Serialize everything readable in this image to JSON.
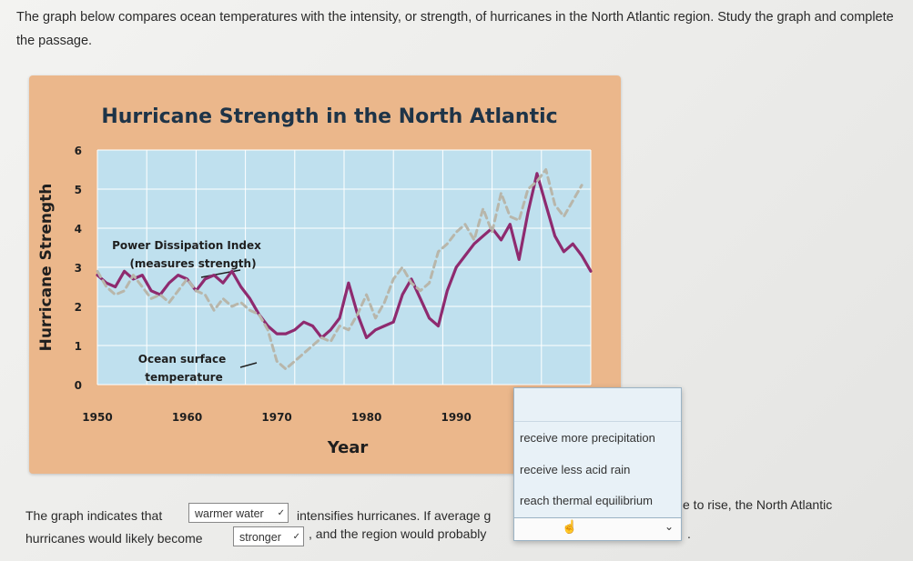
{
  "question": {
    "intro": "The graph below compares ocean temperatures with the intensity, or strength, of hurricanes in the North Atlantic region. Study the graph and complete the passage."
  },
  "chart_data": {
    "type": "line",
    "title": "Hurricane Strength in the North Atlantic",
    "xlabel": "Year",
    "ylabel": "Hurricane Strength",
    "x_ticks": [
      "1950",
      "1960",
      "1970",
      "1980",
      "1990",
      "2000"
    ],
    "y_ticks": [
      "0",
      "1",
      "2",
      "3",
      "4",
      "5",
      "6"
    ],
    "xlim": [
      1950,
      2005
    ],
    "ylim": [
      0,
      6
    ],
    "grid": true,
    "annotations": [
      "Power Dissipation Index",
      "(measures strength)",
      "Ocean surface",
      "temperature"
    ],
    "series": [
      {
        "name": "Power Dissipation Index",
        "style": "solid",
        "color": "#8e2a6f",
        "x": [
          1950,
          1951,
          1952,
          1953,
          1954,
          1955,
          1956,
          1957,
          1958,
          1959,
          1960,
          1961,
          1962,
          1963,
          1964,
          1965,
          1966,
          1967,
          1968,
          1969,
          1970,
          1971,
          1972,
          1973,
          1974,
          1975,
          1976,
          1977,
          1978,
          1979,
          1980,
          1981,
          1982,
          1983,
          1984,
          1985,
          1986,
          1987,
          1988,
          1989,
          1990,
          1991,
          1992,
          1993,
          1994,
          1995,
          1996,
          1997,
          1998,
          1999,
          2000,
          2001,
          2002,
          2003,
          2004,
          2005
        ],
        "y": [
          2.8,
          2.6,
          2.5,
          2.9,
          2.7,
          2.8,
          2.4,
          2.3,
          2.6,
          2.8,
          2.7,
          2.4,
          2.7,
          2.8,
          2.6,
          2.9,
          2.5,
          2.2,
          1.8,
          1.5,
          1.3,
          1.3,
          1.4,
          1.6,
          1.5,
          1.2,
          1.4,
          1.7,
          2.6,
          1.8,
          1.2,
          1.4,
          1.5,
          1.6,
          2.3,
          2.7,
          2.2,
          1.7,
          1.5,
          2.4,
          3.0,
          3.3,
          3.6,
          3.8,
          4.0,
          3.7,
          4.1,
          3.2,
          4.4,
          5.4,
          4.6,
          3.8,
          3.4,
          3.6,
          3.3,
          2.9
        ]
      },
      {
        "name": "Ocean surface temperature",
        "style": "dashed",
        "color": "#b8b6aa",
        "x": [
          1950,
          1951,
          1952,
          1953,
          1954,
          1955,
          1956,
          1957,
          1958,
          1959,
          1960,
          1961,
          1962,
          1963,
          1964,
          1965,
          1966,
          1967,
          1968,
          1969,
          1970,
          1971,
          1972,
          1973,
          1974,
          1975,
          1976,
          1977,
          1978,
          1979,
          1980,
          1981,
          1982,
          1983,
          1984,
          1985,
          1986,
          1987,
          1988,
          1989,
          1990,
          1991,
          1992,
          1993,
          1994,
          1995,
          1996,
          1997,
          1998,
          1999,
          2000,
          2001,
          2002,
          2003,
          2004
        ],
        "y": [
          2.9,
          2.5,
          2.3,
          2.4,
          2.8,
          2.5,
          2.2,
          2.3,
          2.1,
          2.4,
          2.7,
          2.4,
          2.3,
          1.9,
          2.2,
          2.0,
          2.1,
          1.9,
          1.8,
          1.4,
          0.6,
          0.4,
          0.6,
          0.8,
          1.0,
          1.2,
          1.1,
          1.5,
          1.4,
          1.8,
          2.3,
          1.7,
          2.1,
          2.7,
          3.0,
          2.6,
          2.4,
          2.6,
          3.4,
          3.6,
          3.9,
          4.1,
          3.7,
          4.5,
          3.9,
          4.9,
          4.3,
          4.2,
          5.0,
          5.2,
          5.5,
          4.6,
          4.3,
          4.7,
          5.1
        ]
      }
    ]
  },
  "dropdown_menu": {
    "options": [
      "receive more precipitation",
      "receive less acid rain",
      "reach thermal equilibrium"
    ]
  },
  "passage": {
    "part1": "The graph indicates that",
    "select1": "warmer water",
    "part2": "intensifies hurricanes. If average g",
    "part3": "e to rise, the North Atlantic",
    "part4": "hurricanes would likely become",
    "select2": "stronger",
    "part5": ", and the region would probably",
    "part6": "."
  },
  "icons": {
    "chevron": "chevron-down-icon",
    "cursor": "hand-pointer-icon"
  }
}
